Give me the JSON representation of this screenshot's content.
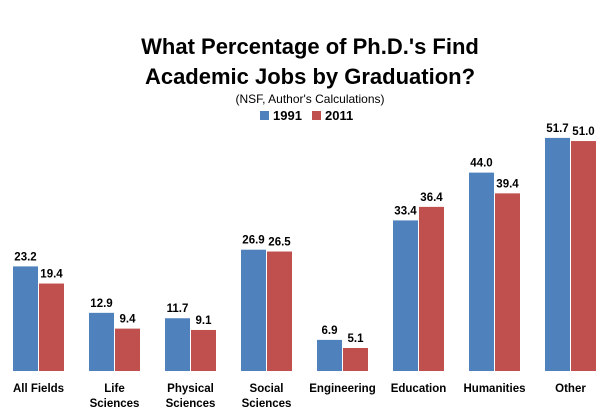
{
  "chart_data": {
    "type": "bar",
    "title_lines": [
      "What Percentage of Ph.D.'s Find",
      "Academic Jobs by Graduation?"
    ],
    "subtitle": "(NSF, Author's Calculations)",
    "xlabel": "",
    "ylabel": "",
    "ylim": [
      0,
      57
    ],
    "grid": false,
    "legend_position": "top-center",
    "categories": [
      [
        "All Fields"
      ],
      [
        "Life",
        "Sciences"
      ],
      [
        "Physical",
        "Sciences"
      ],
      [
        "Social",
        "Sciences"
      ],
      [
        "Engineering"
      ],
      [
        "Education"
      ],
      [
        "Humanities"
      ],
      [
        "Other"
      ]
    ],
    "series": [
      {
        "name": "1991",
        "color": "#4f81bd",
        "values": [
          23.2,
          12.9,
          11.7,
          26.9,
          6.9,
          33.4,
          44.0,
          51.7
        ],
        "labels": [
          "23.2",
          "12.9",
          "11.7",
          "26.9",
          "6.9",
          "33.4",
          "44.0",
          "51.7"
        ]
      },
      {
        "name": "2011",
        "color": "#c0504d",
        "values": [
          19.4,
          9.4,
          9.1,
          26.5,
          5.1,
          36.4,
          39.4,
          51.0
        ],
        "labels": [
          "19.4",
          "9.4",
          "9.1",
          "26.5",
          "5.1",
          "36.4",
          "39.4",
          "51.0"
        ]
      }
    ]
  }
}
